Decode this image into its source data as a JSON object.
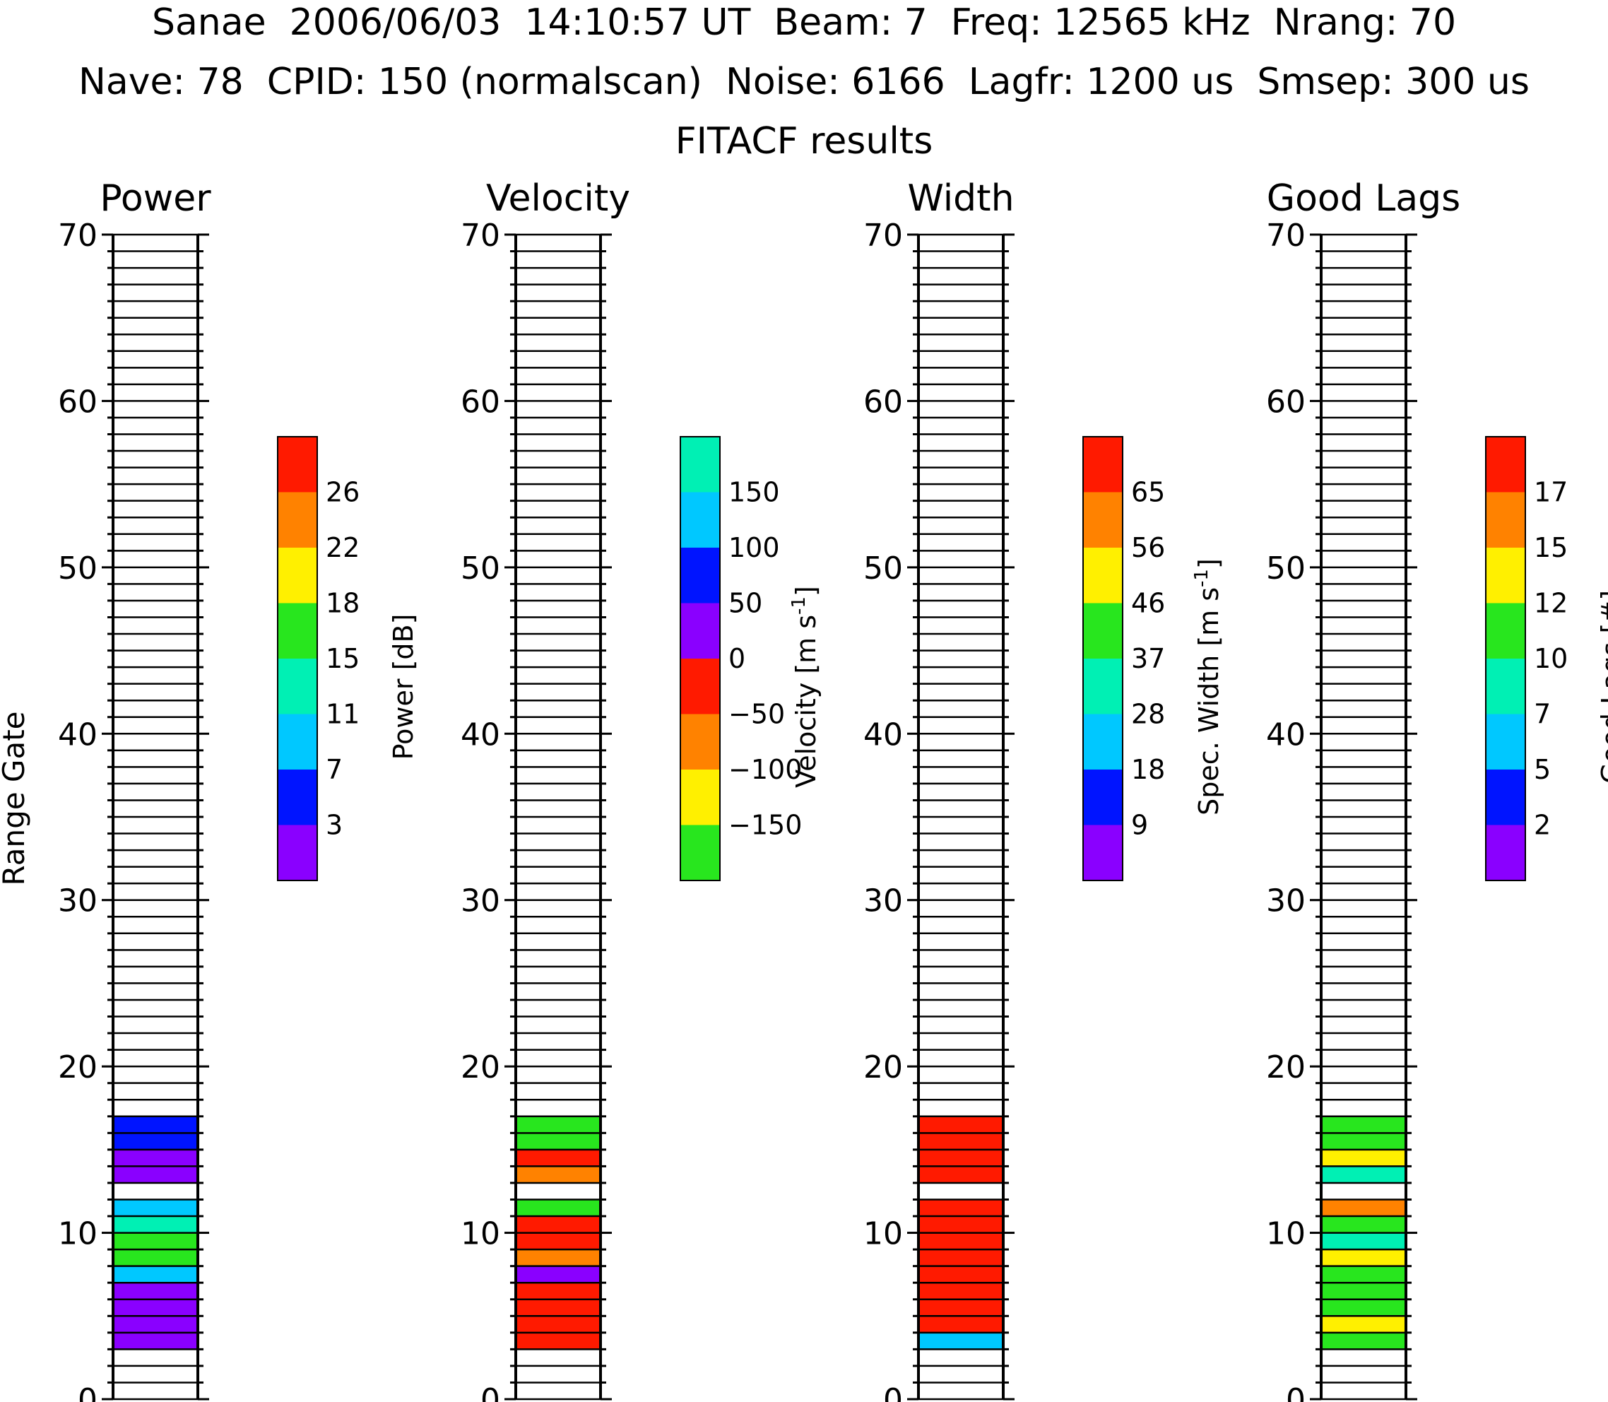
{
  "header": {
    "line1": "Sanae  2006/06/03  14:10:57 UT  Beam: 7  Freq: 12565 kHz  Nrang: 70",
    "line2": "Nave: 78  CPID: 150 (normalscan)  Noise: 6166  Lagfr: 1200 us  Smsep: 300 us",
    "line3": "FITACF results"
  },
  "colors": {
    "purple": "#8a00ff",
    "blue": "#0014ff",
    "lightblue": "#00c8ff",
    "teal": "#00f0b4",
    "green": "#28e61e",
    "yellow": "#fff000",
    "orange": "#ff8200",
    "red": "#ff1a00"
  },
  "chart_data": {
    "type": "heatmap",
    "ylabel": "Range Gate",
    "ylim": [
      0,
      70
    ],
    "yticks": [
      "0",
      "10",
      "20",
      "30",
      "40",
      "50",
      "60",
      "70"
    ],
    "panels": [
      {
        "title": "Power",
        "cbar_label": "Power [dB]",
        "cbar_colors": [
          "purple",
          "blue",
          "lightblue",
          "teal",
          "green",
          "yellow",
          "orange",
          "red"
        ],
        "cbar_ticks": [
          "3",
          "7",
          "11",
          "15",
          "18",
          "22",
          "26"
        ],
        "gates": [
          {
            "gate": 3,
            "color": "purple"
          },
          {
            "gate": 4,
            "color": "purple"
          },
          {
            "gate": 5,
            "color": "purple"
          },
          {
            "gate": 6,
            "color": "purple"
          },
          {
            "gate": 7,
            "color": "lightblue"
          },
          {
            "gate": 8,
            "color": "green"
          },
          {
            "gate": 9,
            "color": "green"
          },
          {
            "gate": 10,
            "color": "teal"
          },
          {
            "gate": 11,
            "color": "lightblue"
          },
          {
            "gate": 13,
            "color": "purple"
          },
          {
            "gate": 14,
            "color": "purple"
          },
          {
            "gate": 15,
            "color": "blue"
          },
          {
            "gate": 16,
            "color": "blue"
          }
        ]
      },
      {
        "title": "Velocity",
        "cbar_label": "Velocity [m s^-1]",
        "cbar_colors": [
          "green",
          "yellow",
          "orange",
          "red",
          "purple",
          "blue",
          "lightblue",
          "teal"
        ],
        "cbar_ticks": [
          "−150",
          "−100",
          "−50",
          "0",
          "50",
          "100",
          "150"
        ],
        "gates": [
          {
            "gate": 3,
            "color": "red"
          },
          {
            "gate": 4,
            "color": "red"
          },
          {
            "gate": 5,
            "color": "red"
          },
          {
            "gate": 6,
            "color": "red"
          },
          {
            "gate": 7,
            "color": "purple"
          },
          {
            "gate": 8,
            "color": "orange"
          },
          {
            "gate": 9,
            "color": "red"
          },
          {
            "gate": 10,
            "color": "red"
          },
          {
            "gate": 11,
            "color": "green"
          },
          {
            "gate": 13,
            "color": "orange"
          },
          {
            "gate": 14,
            "color": "red"
          },
          {
            "gate": 15,
            "color": "green"
          },
          {
            "gate": 16,
            "color": "green"
          }
        ]
      },
      {
        "title": "Width",
        "cbar_label": "Spec. Width [m s^-1]",
        "cbar_colors": [
          "purple",
          "blue",
          "lightblue",
          "teal",
          "green",
          "yellow",
          "orange",
          "red"
        ],
        "cbar_ticks": [
          "9",
          "18",
          "28",
          "37",
          "46",
          "56",
          "65"
        ],
        "gates": [
          {
            "gate": 3,
            "color": "lightblue"
          },
          {
            "gate": 4,
            "color": "red"
          },
          {
            "gate": 5,
            "color": "red"
          },
          {
            "gate": 6,
            "color": "red"
          },
          {
            "gate": 7,
            "color": "red"
          },
          {
            "gate": 8,
            "color": "red"
          },
          {
            "gate": 9,
            "color": "red"
          },
          {
            "gate": 10,
            "color": "red"
          },
          {
            "gate": 11,
            "color": "red"
          },
          {
            "gate": 13,
            "color": "red"
          },
          {
            "gate": 14,
            "color": "red"
          },
          {
            "gate": 15,
            "color": "red"
          },
          {
            "gate": 16,
            "color": "red"
          }
        ]
      },
      {
        "title": "Good Lags",
        "cbar_label": "Good Lags [#]",
        "cbar_colors": [
          "purple",
          "blue",
          "lightblue",
          "teal",
          "green",
          "yellow",
          "orange",
          "red"
        ],
        "cbar_ticks": [
          "2",
          "5",
          "7",
          "10",
          "12",
          "15",
          "17"
        ],
        "gates": [
          {
            "gate": 3,
            "color": "green"
          },
          {
            "gate": 4,
            "color": "yellow"
          },
          {
            "gate": 5,
            "color": "green"
          },
          {
            "gate": 6,
            "color": "green"
          },
          {
            "gate": 7,
            "color": "green"
          },
          {
            "gate": 8,
            "color": "yellow"
          },
          {
            "gate": 9,
            "color": "teal"
          },
          {
            "gate": 10,
            "color": "green"
          },
          {
            "gate": 11,
            "color": "orange"
          },
          {
            "gate": 13,
            "color": "teal"
          },
          {
            "gate": 14,
            "color": "yellow"
          },
          {
            "gate": 15,
            "color": "green"
          },
          {
            "gate": 16,
            "color": "green"
          }
        ]
      }
    ]
  }
}
